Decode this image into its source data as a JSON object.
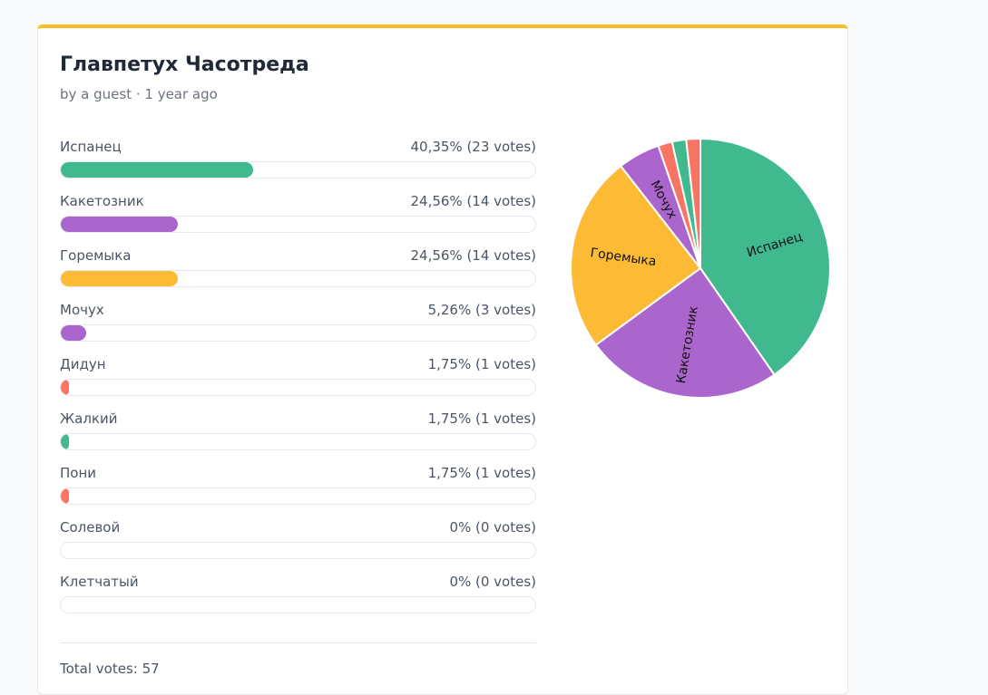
{
  "poll": {
    "title": "Главпетух Часотреда",
    "byline": "by a guest · 1 year ago",
    "options": [
      {
        "name": "Испанец",
        "result": "40,35% (23 votes)",
        "percent": 40.35,
        "votes": 23,
        "color": "#40b98e"
      },
      {
        "name": "Какетозник",
        "result": "24,56% (14 votes)",
        "percent": 24.56,
        "votes": 14,
        "color": "#aa66cc"
      },
      {
        "name": "Горемыка",
        "result": "24,56% (14 votes)",
        "percent": 24.56,
        "votes": 14,
        "color": "#fdbb35"
      },
      {
        "name": "Мочух",
        "result": "5,26% (3 votes)",
        "percent": 5.26,
        "votes": 3,
        "color": "#aa66cc"
      },
      {
        "name": "Дидун",
        "result": "1,75% (1 votes)",
        "percent": 1.75,
        "votes": 1,
        "color": "#f87563"
      },
      {
        "name": "Жалкий",
        "result": "1,75% (1 votes)",
        "percent": 1.75,
        "votes": 1,
        "color": "#40b98e"
      },
      {
        "name": "Пони",
        "result": "1,75% (1 votes)",
        "percent": 1.75,
        "votes": 1,
        "color": "#f87563"
      },
      {
        "name": "Солевой",
        "result": "0% (0 votes)",
        "percent": 0,
        "votes": 0
      },
      {
        "name": "Клетчатый",
        "result": "0% (0 votes)",
        "percent": 0,
        "votes": 0
      }
    ],
    "total_label": "Total votes:",
    "total": 57
  }
}
